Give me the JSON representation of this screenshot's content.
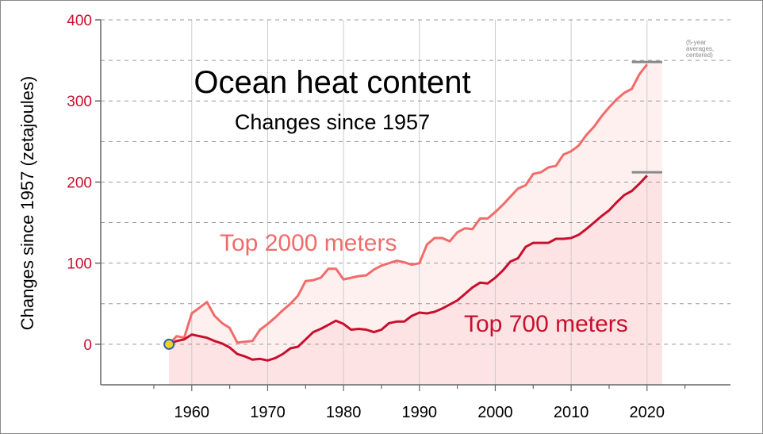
{
  "chart_data": {
    "type": "line",
    "title": "Ocean heat content",
    "subtitle": "Changes since 1957",
    "ylabel": "Changes since 1957 (zetajoules)",
    "xlabel": "",
    "xlim": [
      1948,
      2031
    ],
    "ylim": [
      -50,
      400
    ],
    "x_ticks": [
      "1960",
      "1970",
      "1980",
      "1990",
      "2000",
      "2010",
      "2020"
    ],
    "x_tick_values": [
      1960,
      1970,
      1980,
      1990,
      2000,
      2010,
      2020
    ],
    "y_ticks": [
      "0",
      "100",
      "200",
      "300",
      "400"
    ],
    "y_tick_values": [
      0,
      100,
      200,
      300,
      400
    ],
    "note": [
      "(5-year",
      "averages,",
      "centered)"
    ],
    "grid": true,
    "colors": {
      "top2000": "#f26b6b",
      "top700": "#c8102e",
      "fill2000": "#fff0f0",
      "fill700": "#fde3e3",
      "ytick": "#c8102e",
      "marker_ring": "#2a62b5",
      "marker_fill": "#f2d21f",
      "avg_bar": "#888888"
    },
    "series": [
      {
        "name": "Top 2000 meters",
        "x": [
          1957,
          1958,
          1959,
          1960,
          1961,
          1962,
          1963,
          1964,
          1965,
          1966,
          1967,
          1968,
          1969,
          1970,
          1971,
          1972,
          1973,
          1974,
          1975,
          1976,
          1977,
          1978,
          1979,
          1980,
          1981,
          1982,
          1983,
          1984,
          1985,
          1986,
          1987,
          1988,
          1989,
          1990,
          1991,
          1992,
          1993,
          1994,
          1995,
          1996,
          1997,
          1998,
          1999,
          2000,
          2001,
          2002,
          2003,
          2004,
          2005,
          2006,
          2007,
          2008,
          2009,
          2010,
          2011,
          2012,
          2013,
          2014,
          2015,
          2016,
          2017,
          2018,
          2019,
          2020
        ],
        "values": [
          0,
          10,
          8,
          38,
          45,
          52,
          35,
          26,
          20,
          2,
          3,
          4,
          18,
          25,
          33,
          42,
          50,
          60,
          78,
          79,
          82,
          93,
          93,
          80,
          82,
          84,
          85,
          92,
          97,
          100,
          103,
          101,
          98,
          100,
          123,
          131,
          131,
          127,
          138,
          143,
          142,
          155,
          155,
          163,
          172,
          182,
          192,
          196,
          210,
          212,
          218,
          220,
          234,
          238,
          245,
          258,
          268,
          281,
          292,
          302,
          310,
          315,
          333,
          345
        ],
        "avg_5yr": 348
      },
      {
        "name": "Top 700 meters",
        "x": [
          1957,
          1958,
          1959,
          1960,
          1961,
          1962,
          1963,
          1964,
          1965,
          1966,
          1967,
          1968,
          1969,
          1970,
          1971,
          1972,
          1973,
          1974,
          1975,
          1976,
          1977,
          1978,
          1979,
          1980,
          1981,
          1982,
          1983,
          1984,
          1985,
          1986,
          1987,
          1988,
          1989,
          1990,
          1991,
          1992,
          1993,
          1994,
          1995,
          1996,
          1997,
          1998,
          1999,
          2000,
          2001,
          2002,
          2003,
          2004,
          2005,
          2006,
          2007,
          2008,
          2009,
          2010,
          2011,
          2012,
          2013,
          2014,
          2015,
          2016,
          2017,
          2018,
          2019,
          2020
        ],
        "values": [
          0,
          4,
          6,
          12,
          10,
          8,
          4,
          1,
          -4,
          -12,
          -15,
          -19,
          -18,
          -20,
          -17,
          -12,
          -5,
          -3,
          6,
          15,
          19,
          24,
          29,
          25,
          18,
          19,
          18,
          15,
          18,
          26,
          28,
          28,
          35,
          39,
          38,
          40,
          44,
          49,
          54,
          62,
          70,
          76,
          75,
          82,
          91,
          102,
          106,
          120,
          125,
          125,
          125,
          130,
          130,
          131,
          135,
          142,
          150,
          158,
          165,
          175,
          184,
          189,
          198,
          208
        ],
        "avg_5yr": 212
      }
    ]
  }
}
